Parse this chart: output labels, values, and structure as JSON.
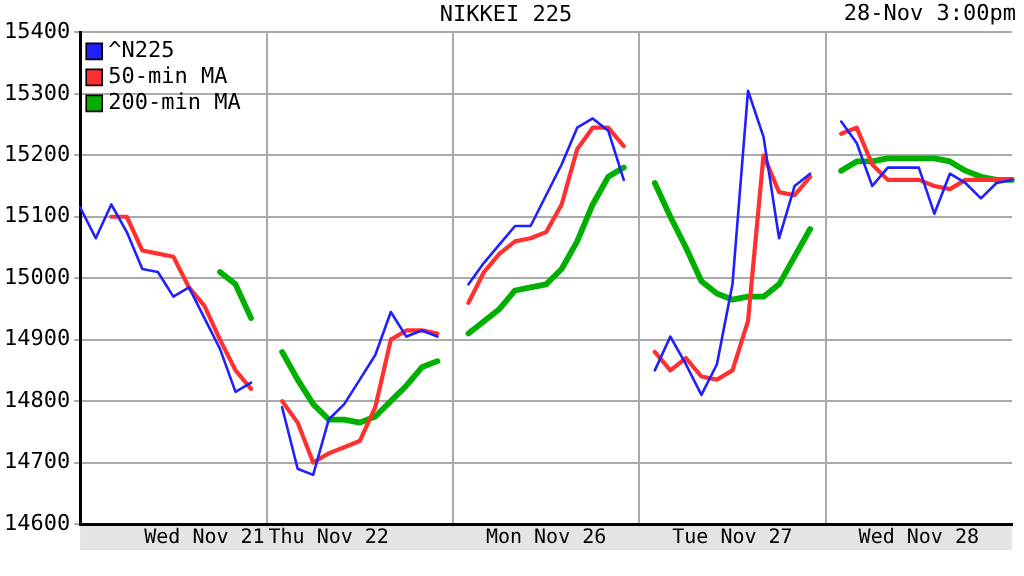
{
  "chart_data": {
    "type": "line",
    "title": "NIKKEI 225",
    "annotations": [
      "28-Nov 3:00pm"
    ],
    "categories": [
      null,
      null,
      null,
      null,
      null,
      null,
      null,
      null,
      "Wed Nov 21",
      null,
      null,
      null,
      null,
      null,
      null,
      null,
      "Thu Nov 22",
      null,
      null,
      null,
      null,
      null,
      null,
      null,
      null,
      null,
      null,
      null,
      null,
      null,
      "Mon Nov 26",
      null,
      null,
      null,
      null,
      null,
      null,
      null,
      null,
      null,
      null,
      null,
      "Tue Nov 27",
      null,
      null,
      null,
      null,
      null,
      null,
      null,
      null,
      null,
      null,
      null,
      "Wed Nov 28",
      null,
      null,
      null,
      null,
      null,
      null
    ],
    "ylim": [
      14600,
      15400
    ],
    "yticks": [
      14600,
      14700,
      14800,
      14900,
      15000,
      15100,
      15200,
      15300,
      15400
    ],
    "grid": true,
    "legend": "top left",
    "marker": "none",
    "line_style": "solid",
    "series": [
      {
        "name": "^N225",
        "color": "#2020ff",
        "values": [
          15115,
          15065,
          15120,
          15075,
          15015,
          15010,
          14970,
          14985,
          14935,
          14885,
          14815,
          14830,
          null,
          14790,
          14690,
          14680,
          14770,
          14795,
          14835,
          14875,
          14945,
          14905,
          14915,
          14905,
          null,
          14990,
          15025,
          15055,
          15085,
          15085,
          15135,
          15185,
          15245,
          15260,
          15240,
          15160,
          null,
          14850,
          14905,
          14860,
          14810,
          14860,
          14990,
          15305,
          15230,
          15065,
          15150,
          15170,
          null,
          15255,
          15220,
          15150,
          15180,
          15180,
          15180,
          15105,
          15170,
          15155,
          15130,
          15155,
          15160
        ]
      },
      {
        "name": "50-min MA",
        "color": "#ff3030",
        "values": [
          null,
          null,
          15100,
          15100,
          15045,
          15040,
          15035,
          14985,
          14955,
          14900,
          14850,
          14820,
          null,
          14800,
          14765,
          14700,
          14715,
          14725,
          14735,
          14790,
          14900,
          14915,
          14915,
          14910,
          null,
          14960,
          15010,
          15040,
          15060,
          15065,
          15075,
          15120,
          15210,
          15245,
          15245,
          15215,
          null,
          14880,
          14850,
          14870,
          14840,
          14835,
          14850,
          14930,
          15200,
          15140,
          15135,
          15165,
          null,
          15235,
          15245,
          15185,
          15160,
          15160,
          15160,
          15150,
          15145,
          15160,
          15160,
          15160,
          15160
        ]
      },
      {
        "name": "200-min MA",
        "color": "#00b000",
        "values": [
          null,
          null,
          null,
          null,
          null,
          null,
          null,
          null,
          null,
          15010,
          14990,
          14935,
          null,
          14880,
          14835,
          14795,
          14770,
          14770,
          14765,
          14775,
          14800,
          14825,
          14855,
          14865,
          null,
          14910,
          14930,
          14950,
          14980,
          14985,
          14990,
          15015,
          15060,
          15120,
          15165,
          15180,
          null,
          15155,
          15100,
          15050,
          14995,
          14975,
          14965,
          14970,
          14970,
          14990,
          15035,
          15080,
          null,
          15175,
          15190,
          15190,
          15195,
          15195,
          15195,
          15195,
          15190,
          15175,
          15165,
          15160,
          15160
        ]
      }
    ]
  }
}
